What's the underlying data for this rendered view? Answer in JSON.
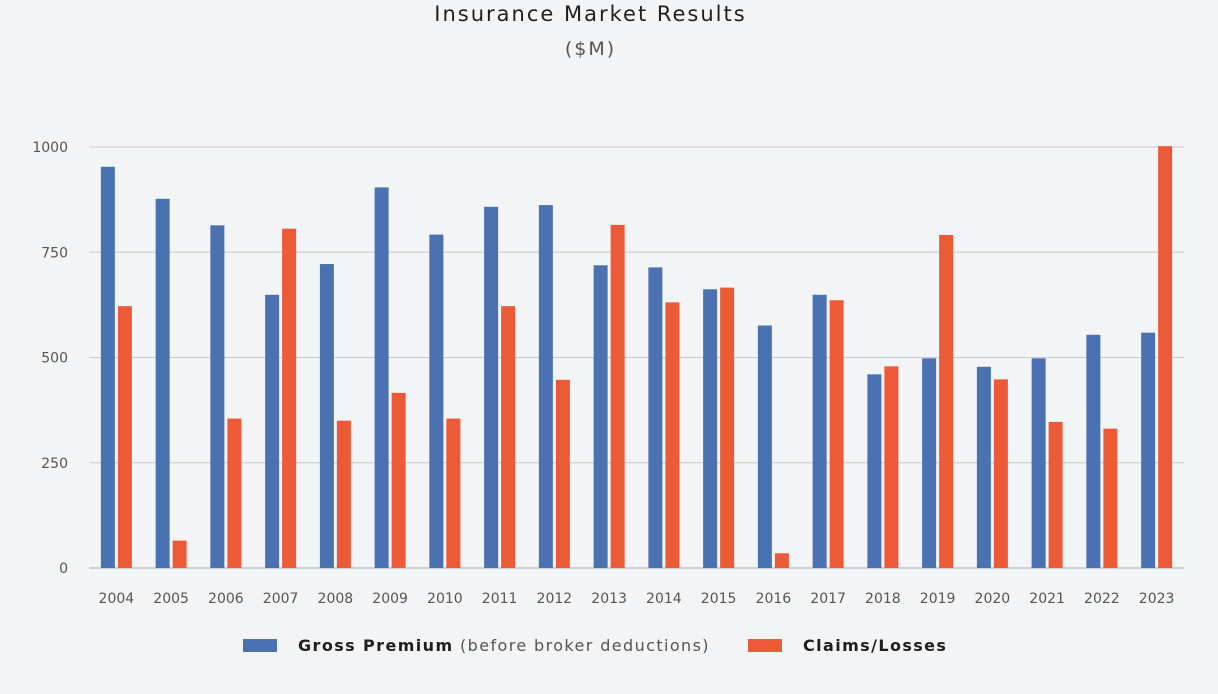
{
  "chart_data": {
    "type": "bar",
    "title": "Insurance Market Results",
    "subtitle": "($M)",
    "xlabel": "",
    "ylabel": "",
    "ylim": [
      0,
      1000
    ],
    "yticks": [
      0,
      250,
      500,
      750,
      1000
    ],
    "grid": true,
    "legend_position": "bottom",
    "categories": [
      "2004",
      "2005",
      "2006",
      "2007",
      "2008",
      "2009",
      "2010",
      "2011",
      "2012",
      "2013",
      "2014",
      "2015",
      "2016",
      "2017",
      "2018",
      "2019",
      "2020",
      "2021",
      "2022",
      "2023"
    ],
    "series": [
      {
        "name": "Gross Premium",
        "note": "(before broker deductions)",
        "color": "#4a72b2",
        "values": [
          953,
          877,
          814,
          649,
          722,
          904,
          792,
          858,
          862,
          719,
          714,
          662,
          576,
          649,
          460,
          498,
          478,
          498,
          554,
          559
        ]
      },
      {
        "name": "Claims/Losses",
        "color": "#ec5a38",
        "values": [
          622,
          65,
          355,
          806,
          350,
          416,
          355,
          622,
          447,
          815,
          631,
          666,
          35,
          636,
          479,
          791,
          448,
          347,
          331,
          1002
        ]
      }
    ]
  }
}
